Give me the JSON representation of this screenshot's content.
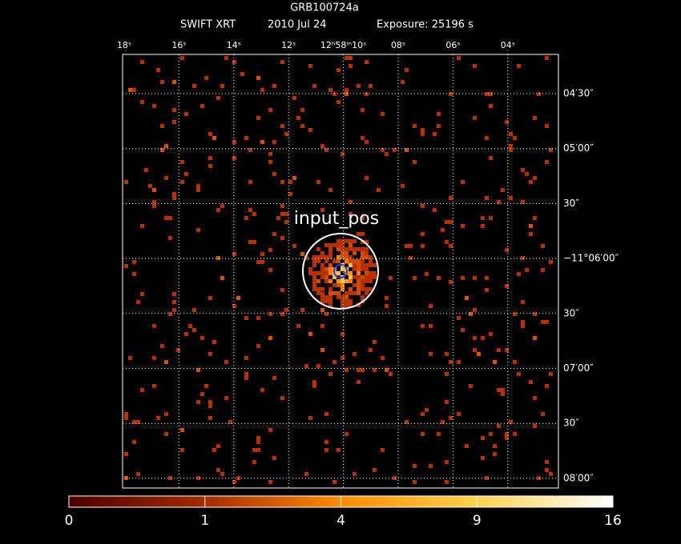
{
  "header": {
    "title": "GRB100724a",
    "instrument": "SWIFT XRT",
    "date": "2010 Jul 24",
    "exposure": "Exposure: 25196 s"
  },
  "x_axis": {
    "labels": [
      "18ˢ",
      "16ˢ",
      "14ˢ",
      "12ˢ",
      "12ʰ58ᵐ10ˢ",
      "08ˢ",
      "06ˢ",
      "04ˢ"
    ]
  },
  "y_axis": {
    "labels": [
      "04′30″",
      "05′00″",
      "30″",
      "−11°06′00″",
      "30″",
      "07′00″",
      "30″",
      "08′00″"
    ]
  },
  "region": {
    "label": "input_pos"
  },
  "colorbar": {
    "ticks": [
      0,
      1,
      4,
      9,
      16
    ],
    "scale": "sqrt"
  }
}
